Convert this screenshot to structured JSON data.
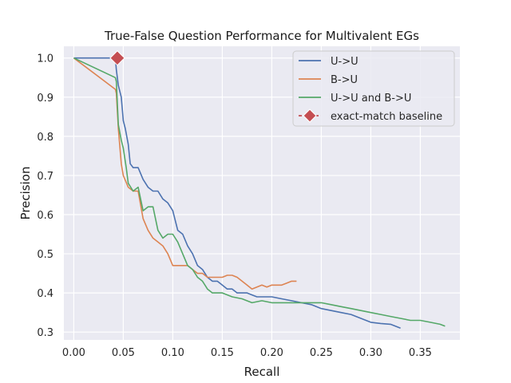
{
  "chart_data": {
    "type": "line",
    "title": "True-False Question Performance for Multivalent EGs",
    "xlabel": "Recall",
    "ylabel": "Precision",
    "xlim": [
      -0.01,
      0.39
    ],
    "ylim": [
      0.28,
      1.03
    ],
    "xticks": [
      "0.00",
      "0.05",
      "0.10",
      "0.15",
      "0.20",
      "0.25",
      "0.30",
      "0.35"
    ],
    "yticks": [
      "0.3",
      "0.4",
      "0.5",
      "0.6",
      "0.7",
      "0.8",
      "0.9",
      "1.0"
    ],
    "grid": true,
    "legend_position": "top-right",
    "background": "#eaeaf2",
    "series": [
      {
        "name": "U->U",
        "color": "#4c72b0",
        "x": [
          0.0,
          0.042,
          0.043,
          0.045,
          0.048,
          0.05,
          0.052,
          0.055,
          0.057,
          0.06,
          0.065,
          0.07,
          0.075,
          0.08,
          0.085,
          0.09,
          0.095,
          0.1,
          0.105,
          0.11,
          0.115,
          0.12,
          0.125,
          0.13,
          0.135,
          0.14,
          0.145,
          0.15,
          0.155,
          0.16,
          0.165,
          0.17,
          0.175,
          0.18,
          0.185,
          0.19,
          0.2,
          0.21,
          0.22,
          0.23,
          0.24,
          0.25,
          0.26,
          0.27,
          0.28,
          0.29,
          0.3,
          0.31,
          0.32,
          0.33
        ],
        "y": [
          1.0,
          1.0,
          0.97,
          0.93,
          0.9,
          0.84,
          0.82,
          0.78,
          0.73,
          0.72,
          0.72,
          0.69,
          0.67,
          0.66,
          0.66,
          0.64,
          0.63,
          0.61,
          0.56,
          0.55,
          0.52,
          0.5,
          0.47,
          0.46,
          0.44,
          0.43,
          0.43,
          0.42,
          0.41,
          0.41,
          0.4,
          0.4,
          0.4,
          0.395,
          0.39,
          0.39,
          0.39,
          0.385,
          0.38,
          0.375,
          0.37,
          0.36,
          0.355,
          0.35,
          0.345,
          0.335,
          0.325,
          0.322,
          0.32,
          0.31
        ]
      },
      {
        "name": "B->U",
        "color": "#dd8452",
        "x": [
          0.0,
          0.042,
          0.043,
          0.045,
          0.048,
          0.05,
          0.055,
          0.06,
          0.065,
          0.07,
          0.075,
          0.08,
          0.085,
          0.09,
          0.095,
          0.1,
          0.105,
          0.11,
          0.115,
          0.12,
          0.125,
          0.13,
          0.135,
          0.14,
          0.145,
          0.15,
          0.155,
          0.16,
          0.165,
          0.17,
          0.175,
          0.18,
          0.185,
          0.19,
          0.195,
          0.2,
          0.205,
          0.21,
          0.215,
          0.22,
          0.225
        ],
        "y": [
          1.0,
          0.92,
          0.91,
          0.82,
          0.73,
          0.7,
          0.67,
          0.66,
          0.66,
          0.59,
          0.56,
          0.54,
          0.53,
          0.52,
          0.5,
          0.47,
          0.47,
          0.47,
          0.47,
          0.46,
          0.45,
          0.45,
          0.44,
          0.44,
          0.44,
          0.44,
          0.445,
          0.445,
          0.44,
          0.43,
          0.42,
          0.41,
          0.415,
          0.42,
          0.415,
          0.42,
          0.42,
          0.42,
          0.425,
          0.43,
          0.43
        ]
      },
      {
        "name": "U->U and B->U",
        "color": "#55a868",
        "x": [
          0.0,
          0.042,
          0.043,
          0.045,
          0.048,
          0.05,
          0.053,
          0.055,
          0.06,
          0.065,
          0.07,
          0.075,
          0.08,
          0.085,
          0.09,
          0.095,
          0.1,
          0.105,
          0.11,
          0.115,
          0.12,
          0.125,
          0.13,
          0.135,
          0.14,
          0.15,
          0.16,
          0.17,
          0.18,
          0.19,
          0.2,
          0.21,
          0.22,
          0.23,
          0.24,
          0.25,
          0.26,
          0.27,
          0.28,
          0.29,
          0.3,
          0.31,
          0.32,
          0.33,
          0.34,
          0.35,
          0.36,
          0.37,
          0.375
        ],
        "y": [
          1.0,
          0.95,
          0.94,
          0.83,
          0.79,
          0.77,
          0.72,
          0.68,
          0.66,
          0.67,
          0.61,
          0.62,
          0.62,
          0.56,
          0.54,
          0.55,
          0.55,
          0.53,
          0.5,
          0.47,
          0.46,
          0.44,
          0.43,
          0.41,
          0.4,
          0.4,
          0.39,
          0.385,
          0.375,
          0.38,
          0.375,
          0.375,
          0.375,
          0.375,
          0.375,
          0.375,
          0.37,
          0.365,
          0.36,
          0.355,
          0.35,
          0.345,
          0.34,
          0.335,
          0.33,
          0.33,
          0.325,
          0.32,
          0.315
        ]
      },
      {
        "name": "exact-match baseline",
        "color": "#c44e52",
        "x": [
          0.044
        ],
        "y": [
          1.0
        ]
      }
    ]
  }
}
